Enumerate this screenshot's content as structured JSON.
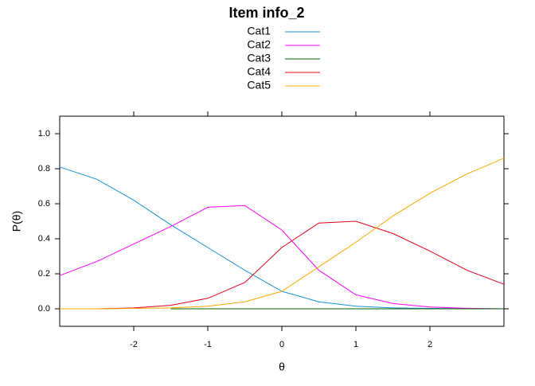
{
  "chart_data": {
    "type": "line",
    "title": "Item info_2",
    "x_label": "θ",
    "y_label": "P(θ)",
    "x": [
      -3,
      -2.5,
      -2,
      -1.5,
      -1,
      -0.5,
      0,
      0.5,
      1,
      1.5,
      2,
      2.5,
      3
    ],
    "series": [
      {
        "name": "Cat1",
        "color": "#1a8fd6",
        "values": [
          0.81,
          0.74,
          0.62,
          0.48,
          0.35,
          0.22,
          0.1,
          0.04,
          0.015,
          0.005,
          0.002,
          0.001,
          0
        ]
      },
      {
        "name": "Cat2",
        "color": "#ff00ff",
        "values": [
          0.19,
          0.27,
          0.37,
          0.47,
          0.58,
          0.59,
          0.45,
          0.22,
          0.08,
          0.03,
          0.01,
          0.003,
          0
        ]
      },
      {
        "name": "Cat3",
        "color": "#006400",
        "values": [
          null,
          null,
          null,
          0,
          0,
          0,
          0,
          0,
          0,
          0,
          0,
          0,
          0
        ]
      },
      {
        "name": "Cat4",
        "color": "#e0001a",
        "values": [
          null,
          0,
          0.005,
          0.02,
          0.06,
          0.15,
          0.35,
          0.49,
          0.5,
          0.43,
          0.33,
          0.22,
          0.14
        ]
      },
      {
        "name": "Cat5",
        "color": "#ffa500",
        "values": [
          0,
          0,
          0.002,
          0.005,
          0.015,
          0.04,
          0.1,
          0.24,
          0.38,
          0.53,
          0.66,
          0.77,
          0.86
        ]
      }
    ],
    "xlim": [
      -3,
      3
    ],
    "xticks": [
      -2,
      -1,
      0,
      1,
      2
    ],
    "ylim": [
      -0.1,
      1.1
    ],
    "yticks": [
      {
        "value": 0,
        "label": "0.0"
      },
      0.2,
      0.4,
      0.6,
      0.8,
      {
        "value": 1,
        "label": "1.0"
      }
    ]
  }
}
